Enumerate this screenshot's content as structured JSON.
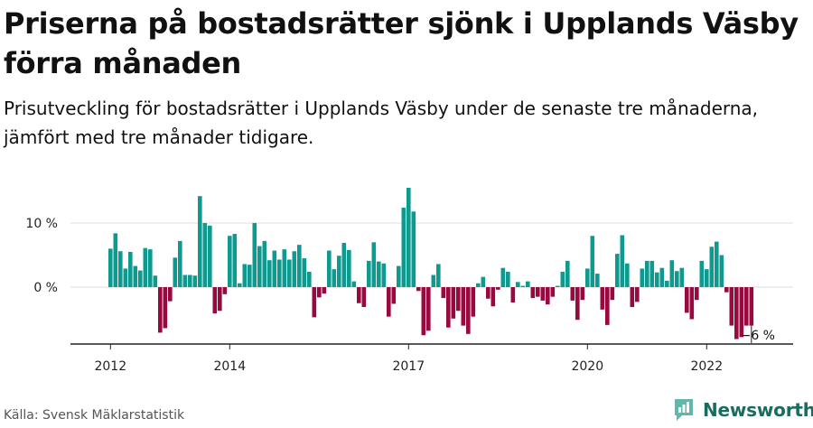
{
  "title": "Priserna på bostadsrätter sjönk i Upplands Väsby förra månaden",
  "subtitle": "Prisutveckling för bostadsrätter i Upplands Väsby under de senaste tre månaderna, jämfört med tre månader tidigare.",
  "source": "Källa: Svensk Mäklarstatistik",
  "brand": "Newsworthy",
  "colors": {
    "positive": "#0f9a8f",
    "negative": "#98093f",
    "brand": "#1c6b62",
    "grid": "#dddddd",
    "axis": "#222222"
  },
  "chart_data": {
    "type": "bar",
    "unit": "%",
    "title": "Priserna på bostadsrätter sjönk i Upplands Väsby förra månaden",
    "xlabel": "",
    "ylabel": "",
    "ylim": [
      -9,
      18
    ],
    "yticks": [
      {
        "value": 0,
        "label": "0 %"
      },
      {
        "value": 10,
        "label": "10 %"
      }
    ],
    "xticks": [
      {
        "index": 0,
        "label": "2012"
      },
      {
        "index": 24,
        "label": "2014"
      },
      {
        "index": 60,
        "label": "2017"
      },
      {
        "index": 96,
        "label": "2020"
      },
      {
        "index": 120,
        "label": "2022"
      }
    ],
    "last_label": "−6 %",
    "values": [
      6.0,
      8.4,
      5.6,
      2.9,
      5.5,
      3.3,
      2.6,
      6.1,
      5.9,
      1.8,
      -7.1,
      -6.4,
      -2.2,
      4.6,
      7.2,
      1.9,
      1.9,
      1.8,
      14.2,
      10.0,
      9.6,
      -4.1,
      -3.7,
      -1.1,
      8.0,
      8.3,
      0.6,
      3.6,
      3.5,
      10.0,
      6.4,
      7.2,
      4.2,
      5.7,
      4.3,
      5.9,
      4.3,
      5.6,
      6.6,
      4.5,
      2.4,
      -4.7,
      -1.6,
      -1.0,
      5.7,
      2.8,
      4.9,
      6.9,
      5.8,
      0.9,
      -2.5,
      -3.1,
      4.1,
      7.0,
      4.0,
      3.7,
      -4.6,
      -2.6,
      3.3,
      12.4,
      15.5,
      11.8,
      -0.6,
      -7.5,
      -6.8,
      1.9,
      3.6,
      -1.7,
      -6.3,
      -4.9,
      -3.7,
      -6.0,
      -7.3,
      -4.6,
      0.6,
      1.6,
      -1.8,
      -3.0,
      -0.4,
      3.0,
      2.4,
      -2.4,
      0.8,
      0.2,
      0.9,
      -1.7,
      -1.5,
      -2.1,
      -2.7,
      -1.5,
      0.2,
      2.4,
      4.1,
      -2.1,
      -5.1,
      -2.0,
      2.9,
      8.0,
      2.1,
      -3.5,
      -5.9,
      -2.0,
      5.2,
      8.1,
      3.7,
      -3.1,
      -2.3,
      2.9,
      4.1,
      4.1,
      2.3,
      3.0,
      1.0,
      4.2,
      2.5,
      3.0,
      -4.0,
      -5.0,
      -2.0,
      4.1,
      2.8,
      6.3,
      7.1,
      5.0,
      -0.8,
      -6.0,
      -8.1,
      -7.8,
      -6.0,
      -6.0
    ]
  }
}
